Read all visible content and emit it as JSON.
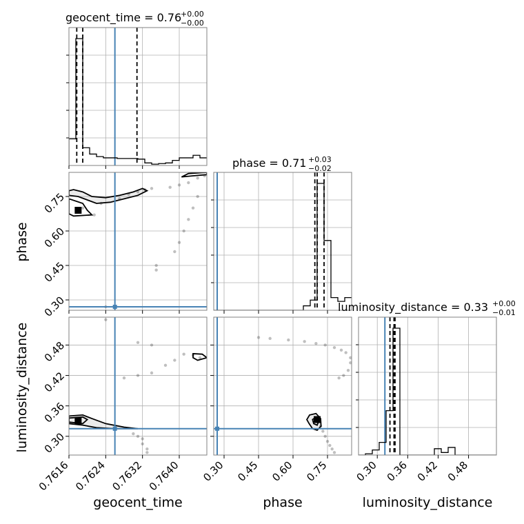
{
  "chart_data": {
    "type": "corner",
    "parameters": [
      "geocent_time",
      "phase",
      "luminosity_distance"
    ],
    "titles": [
      {
        "name": "geocent_time = 0.76",
        "plus": "+0.00",
        "minus": "−0.00"
      },
      {
        "name": "phase = 0.71",
        "plus": "+0.03",
        "minus": "−0.02"
      },
      {
        "name": "luminosity_distance = 0.33",
        "plus": "+0.00",
        "minus": "−0.01"
      }
    ],
    "axes_labels": {
      "x": [
        "geocent_time",
        "phase",
        "luminosity_distance"
      ],
      "y": [
        "phase",
        "luminosity_distance"
      ]
    },
    "ticks": {
      "geocent_time": [
        "0.7616",
        "0.7624",
        "0.7632",
        "0.7640"
      ],
      "phase": [
        "0.30",
        "0.45",
        "0.60",
        "0.75"
      ],
      "luminosity_distance": [
        "0.30",
        "0.36",
        "0.42",
        "0.48"
      ]
    },
    "ranges": {
      "geocent_time": [
        0.7616,
        0.7646
      ],
      "phase": [
        0.255,
        0.855
      ],
      "luminosity_distance": [
        0.263,
        0.535
      ]
    },
    "tick_values": {
      "geocent_time": [
        0.7616,
        0.7624,
        0.7632,
        0.764
      ],
      "phase": [
        0.3,
        0.45,
        0.6,
        0.75
      ],
      "luminosity_distance": [
        0.3,
        0.36,
        0.42,
        0.48
      ]
    },
    "injection": {
      "geocent_time": 0.7626,
      "phase": 0.27,
      "luminosity_distance": 0.315
    },
    "quantiles": {
      "geocent_time": [
        0.76177,
        0.7619,
        0.76308
      ],
      "phase": [
        0.695,
        0.705,
        0.735
      ],
      "luminosity_distance": [
        0.325,
        0.333,
        0.335
      ]
    },
    "marginals": {
      "geocent_time": {
        "edges": [
          0.7616,
          0.76175,
          0.7619,
          0.76205,
          0.7622,
          0.76235,
          0.7625,
          0.76265,
          0.7628,
          0.76295,
          0.7631,
          0.76325,
          0.7634,
          0.76355,
          0.7637,
          0.76385,
          0.764,
          0.76415,
          0.7643,
          0.76445,
          0.7646
        ],
        "counts": [
          0.21,
          1.0,
          0.14,
          0.09,
          0.07,
          0.06,
          0.06,
          0.055,
          0.055,
          0.055,
          0.05,
          0.02,
          0.01,
          0.015,
          0.02,
          0.04,
          0.06,
          0.06,
          0.08,
          0.06
        ]
      },
      "phase": {
        "edges": [
          0.255,
          0.285,
          0.315,
          0.345,
          0.375,
          0.405,
          0.435,
          0.465,
          0.495,
          0.525,
          0.555,
          0.585,
          0.615,
          0.645,
          0.675,
          0.705,
          0.735,
          0.765,
          0.795,
          0.825,
          0.855
        ],
        "counts": [
          0.0,
          0.0,
          0.0,
          0.0,
          0.0,
          0.0,
          0.0,
          0.0,
          0.0,
          0.0,
          0.0,
          0.0,
          0.0,
          0.035,
          0.08,
          1.0,
          0.55,
          0.1,
          0.07,
          0.1
        ]
      },
      "luminosity_distance": {
        "edges": [
          0.263,
          0.2766,
          0.2902,
          0.3038,
          0.3174,
          0.331,
          0.3446,
          0.3582,
          0.3718,
          0.3854,
          0.399,
          0.4126,
          0.4262,
          0.4398,
          0.4534,
          0.467,
          0.4806,
          0.4942,
          0.5078,
          0.5214,
          0.535
        ],
        "counts": [
          0.0,
          0.01,
          0.04,
          0.1,
          0.35,
          1.0,
          0.0,
          0.0,
          0.0,
          0.0,
          0.0,
          0.05,
          0.02,
          0.06,
          0.0,
          0.0,
          0.0,
          0.0,
          0.0,
          0.0
        ]
      }
    },
    "samples_geocent_phase": [
      [
        0.7619,
        0.7
      ],
      [
        0.76215,
        0.67
      ],
      [
        0.7623,
        0.72
      ],
      [
        0.7627,
        0.74
      ],
      [
        0.7629,
        0.76
      ],
      [
        0.7631,
        0.77
      ],
      [
        0.76325,
        0.78
      ],
      [
        0.7634,
        0.785
      ],
      [
        0.7638,
        0.79
      ],
      [
        0.764,
        0.8
      ],
      [
        0.7642,
        0.81
      ],
      [
        0.7644,
        0.83
      ],
      [
        0.76455,
        0.84
      ],
      [
        0.7644,
        0.75
      ],
      [
        0.7643,
        0.7
      ],
      [
        0.7642,
        0.65
      ],
      [
        0.7641,
        0.6
      ],
      [
        0.764,
        0.55
      ],
      [
        0.7639,
        0.51
      ],
      [
        0.7635,
        0.45
      ],
      [
        0.7635,
        0.43
      ],
      [
        0.7624,
        0.27
      ]
    ],
    "samples_geocent_dist": [
      [
        0.76445,
        0.455
      ],
      [
        0.7643,
        0.46
      ],
      [
        0.7641,
        0.462
      ],
      [
        0.7639,
        0.45
      ],
      [
        0.7637,
        0.44
      ],
      [
        0.7634,
        0.425
      ],
      [
        0.7631,
        0.42
      ],
      [
        0.7628,
        0.415
      ],
      [
        0.7631,
        0.485
      ],
      [
        0.7634,
        0.48
      ],
      [
        0.763,
        0.305
      ],
      [
        0.7631,
        0.3
      ],
      [
        0.7632,
        0.295
      ],
      [
        0.7632,
        0.285
      ],
      [
        0.7633,
        0.275
      ],
      [
        0.7633,
        0.268
      ],
      [
        0.7624,
        0.53
      ]
    ],
    "samples_phase_dist": [
      [
        0.85,
        0.455
      ],
      [
        0.83,
        0.465
      ],
      [
        0.81,
        0.47
      ],
      [
        0.78,
        0.475
      ],
      [
        0.74,
        0.48
      ],
      [
        0.7,
        0.483
      ],
      [
        0.65,
        0.487
      ],
      [
        0.58,
        0.49
      ],
      [
        0.5,
        0.493
      ],
      [
        0.45,
        0.495
      ],
      [
        0.85,
        0.445
      ],
      [
        0.84,
        0.43
      ],
      [
        0.82,
        0.42
      ],
      [
        0.8,
        0.415
      ],
      [
        0.72,
        0.32
      ],
      [
        0.73,
        0.31
      ],
      [
        0.74,
        0.3
      ],
      [
        0.75,
        0.29
      ],
      [
        0.76,
        0.282
      ],
      [
        0.77,
        0.275
      ],
      [
        0.78,
        0.268
      ]
    ],
    "contours": {
      "geocent_phase": [
        [
          [
            0.7616,
            0.755
          ],
          [
            0.7618,
            0.75
          ],
          [
            0.762,
            0.735
          ],
          [
            0.7622,
            0.72
          ],
          [
            0.7625,
            0.725
          ],
          [
            0.7628,
            0.74
          ],
          [
            0.7631,
            0.755
          ],
          [
            0.7633,
            0.775
          ],
          [
            0.7632,
            0.785
          ],
          [
            0.763,
            0.77
          ],
          [
            0.7627,
            0.755
          ],
          [
            0.7624,
            0.745
          ],
          [
            0.7621,
            0.75
          ],
          [
            0.7619,
            0.77
          ],
          [
            0.7617,
            0.78
          ],
          [
            0.7616,
            0.775
          ]
        ],
        [
          [
            0.7616,
            0.74
          ],
          [
            0.7619,
            0.72
          ],
          [
            0.762,
            0.69
          ],
          [
            0.7621,
            0.67
          ],
          [
            0.7617,
            0.665
          ],
          [
            0.7616,
            0.675
          ]
        ],
        [
          [
            0.76405,
            0.835
          ],
          [
            0.7642,
            0.85
          ],
          [
            0.7646,
            0.855
          ],
          [
            0.7646,
            0.845
          ],
          [
            0.7643,
            0.84
          ],
          [
            0.76405,
            0.835
          ]
        ]
      ],
      "geocent_dist": [
        [
          [
            0.7616,
            0.34
          ],
          [
            0.7619,
            0.342
          ],
          [
            0.7621,
            0.335
          ],
          [
            0.7624,
            0.325
          ],
          [
            0.7628,
            0.318
          ],
          [
            0.7631,
            0.315
          ],
          [
            0.7626,
            0.315
          ],
          [
            0.7622,
            0.317
          ],
          [
            0.7619,
            0.322
          ],
          [
            0.7616,
            0.325
          ]
        ],
        [
          [
            0.7616,
            0.328
          ],
          [
            0.7619,
            0.325
          ],
          [
            0.762,
            0.333
          ],
          [
            0.7619,
            0.338
          ],
          [
            0.7616,
            0.336
          ]
        ],
        [
          [
            0.7643,
            0.463
          ],
          [
            0.7645,
            0.462
          ],
          [
            0.7646,
            0.455
          ],
          [
            0.7644,
            0.45
          ],
          [
            0.7643,
            0.455
          ],
          [
            0.7643,
            0.463
          ]
        ]
      ],
      "phase_dist": [
        [
          [
            0.66,
            0.333
          ],
          [
            0.672,
            0.342
          ],
          [
            0.7,
            0.345
          ],
          [
            0.72,
            0.335
          ],
          [
            0.722,
            0.32
          ],
          [
            0.705,
            0.312
          ],
          [
            0.685,
            0.315
          ],
          [
            0.67,
            0.325
          ],
          [
            0.66,
            0.333
          ]
        ],
        [
          [
            0.685,
            0.333
          ],
          [
            0.7,
            0.338
          ],
          [
            0.712,
            0.33
          ],
          [
            0.705,
            0.322
          ],
          [
            0.69,
            0.325
          ],
          [
            0.685,
            0.333
          ]
        ]
      ]
    },
    "peak_markers": {
      "geocent_phase": [
        0.7618,
        0.69
      ],
      "geocent_dist": [
        0.7618,
        0.33
      ],
      "phase_dist": [
        0.705,
        0.333
      ]
    },
    "colors": {
      "injection": "#4682b4",
      "lines": "#000000",
      "grid": "#b0b0b0",
      "frame": "#808080"
    }
  }
}
